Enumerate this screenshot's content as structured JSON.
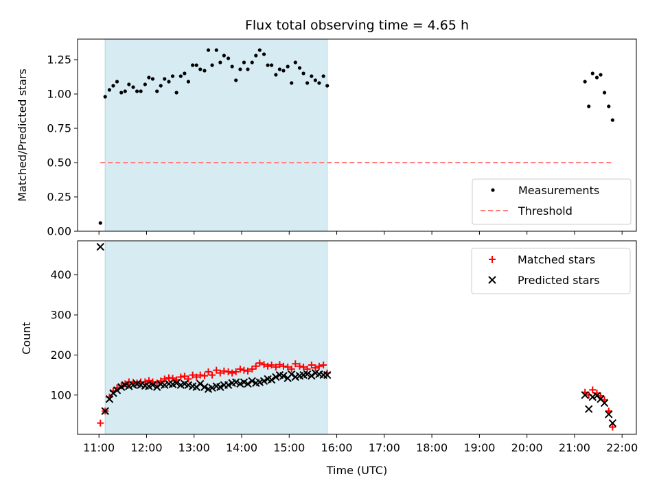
{
  "title": "Flux total observing time = 4.65 h",
  "x_axis": {
    "label": "Time (UTC)",
    "ticks": [
      "11:00",
      "12:00",
      "13:00",
      "14:00",
      "15:00",
      "16:00",
      "17:00",
      "18:00",
      "19:00",
      "20:00",
      "21:00",
      "22:00"
    ],
    "range_hours": [
      10.55,
      22.3
    ]
  },
  "shaded_interval_hours": [
    11.13,
    15.8
  ],
  "shade_color": "#add8e6",
  "chart_data": [
    {
      "type": "scatter",
      "panel": "top",
      "ylabel": "Matched/Predicted stars",
      "ylim": [
        0.0,
        1.4
      ],
      "yticks": [
        "0.00",
        "0.25",
        "0.50",
        "0.75",
        "1.00",
        "1.25"
      ],
      "legend_position": "lower-right",
      "series": [
        {
          "name": "Measurements",
          "color": "#000000",
          "marker": "dot",
          "x": [
            11.03,
            11.13,
            11.22,
            11.3,
            11.38,
            11.47,
            11.55,
            11.63,
            11.72,
            11.8,
            11.88,
            11.97,
            12.05,
            12.13,
            12.22,
            12.3,
            12.38,
            12.47,
            12.55,
            12.63,
            12.72,
            12.8,
            12.88,
            12.97,
            13.05,
            13.13,
            13.22,
            13.3,
            13.38,
            13.47,
            13.55,
            13.63,
            13.72,
            13.8,
            13.88,
            13.97,
            14.05,
            14.13,
            14.22,
            14.3,
            14.38,
            14.47,
            14.55,
            14.63,
            14.72,
            14.8,
            14.88,
            14.97,
            15.05,
            15.13,
            15.22,
            15.3,
            15.38,
            15.47,
            15.55,
            15.63,
            15.72,
            15.8,
            21.22,
            21.3,
            21.38,
            21.47,
            21.55,
            21.63,
            21.72,
            21.8
          ],
          "y": [
            0.06,
            0.98,
            1.03,
            1.06,
            1.09,
            1.01,
            1.02,
            1.07,
            1.05,
            1.02,
            1.02,
            1.07,
            1.12,
            1.11,
            1.02,
            1.06,
            1.11,
            1.09,
            1.13,
            1.01,
            1.13,
            1.15,
            1.09,
            1.21,
            1.21,
            1.18,
            1.17,
            1.32,
            1.21,
            1.32,
            1.23,
            1.28,
            1.26,
            1.2,
            1.1,
            1.18,
            1.23,
            1.18,
            1.23,
            1.28,
            1.32,
            1.29,
            1.21,
            1.21,
            1.14,
            1.18,
            1.17,
            1.2,
            1.08,
            1.23,
            1.19,
            1.15,
            1.08,
            1.13,
            1.1,
            1.08,
            1.13,
            1.06,
            1.09,
            0.91,
            1.15,
            1.12,
            1.14,
            1.01,
            0.91,
            0.81
          ]
        },
        {
          "name": "Threshold",
          "color": "#ff7f7f",
          "style": "dashed",
          "x": [
            11.03,
            21.8
          ],
          "y": [
            0.5,
            0.5
          ]
        }
      ]
    },
    {
      "type": "scatter",
      "panel": "bottom",
      "ylabel": "Count",
      "ylim": [
        2,
        485
      ],
      "yticks": [
        "100",
        "200",
        "300",
        "400"
      ],
      "legend_position": "upper-right",
      "series": [
        {
          "name": "Matched stars",
          "color": "#ff0000",
          "marker": "plus",
          "x": [
            11.03,
            11.13,
            11.22,
            11.3,
            11.38,
            11.47,
            11.55,
            11.63,
            11.72,
            11.8,
            11.88,
            11.97,
            12.05,
            12.13,
            12.22,
            12.3,
            12.38,
            12.47,
            12.55,
            12.63,
            12.72,
            12.8,
            12.88,
            12.97,
            13.05,
            13.13,
            13.22,
            13.3,
            13.38,
            13.47,
            13.55,
            13.63,
            13.72,
            13.8,
            13.88,
            13.97,
            14.05,
            14.13,
            14.22,
            14.3,
            14.38,
            14.47,
            14.55,
            14.63,
            14.72,
            14.8,
            14.88,
            14.97,
            15.05,
            15.13,
            15.22,
            15.3,
            15.38,
            15.47,
            15.55,
            15.63,
            15.72,
            15.8,
            21.22,
            21.3,
            21.38,
            21.47,
            21.55,
            21.63,
            21.72,
            21.8
          ],
          "y": [
            30,
            60,
            95,
            110,
            118,
            123,
            128,
            133,
            132,
            130,
            133,
            133,
            136,
            133,
            130,
            135,
            140,
            143,
            142,
            138,
            145,
            147,
            140,
            150,
            145,
            150,
            148,
            158,
            150,
            162,
            155,
            160,
            158,
            155,
            158,
            165,
            162,
            160,
            165,
            172,
            180,
            176,
            172,
            175,
            170,
            176,
            172,
            170,
            165,
            178,
            172,
            170,
            165,
            175,
            168,
            172,
            175,
            155,
            107,
            100,
            113,
            105,
            98,
            88,
            60,
            20
          ]
        },
        {
          "name": "Predicted stars",
          "color": "#000000",
          "marker": "cross",
          "x": [
            11.03,
            11.13,
            11.22,
            11.3,
            11.38,
            11.47,
            11.55,
            11.63,
            11.72,
            11.8,
            11.88,
            11.97,
            12.05,
            12.13,
            12.22,
            12.3,
            12.38,
            12.47,
            12.55,
            12.63,
            12.72,
            12.8,
            12.88,
            12.97,
            13.05,
            13.13,
            13.22,
            13.3,
            13.38,
            13.47,
            13.55,
            13.63,
            13.72,
            13.8,
            13.88,
            13.97,
            14.05,
            14.13,
            14.22,
            14.3,
            14.38,
            14.47,
            14.55,
            14.63,
            14.72,
            14.8,
            14.88,
            14.97,
            15.05,
            15.13,
            15.22,
            15.3,
            15.38,
            15.47,
            15.55,
            15.63,
            15.72,
            15.8,
            21.22,
            21.3,
            21.38,
            21.47,
            21.55,
            21.63,
            21.72,
            21.8
          ],
          "y": [
            470,
            60,
            90,
            105,
            112,
            120,
            125,
            122,
            125,
            128,
            125,
            123,
            122,
            125,
            120,
            127,
            125,
            128,
            127,
            130,
            125,
            128,
            125,
            122,
            120,
            128,
            120,
            115,
            118,
            122,
            120,
            125,
            125,
            130,
            132,
            128,
            132,
            128,
            135,
            130,
            132,
            135,
            140,
            138,
            145,
            150,
            148,
            142,
            152,
            145,
            148,
            150,
            152,
            148,
            155,
            152,
            150,
            150,
            100,
            65,
            95,
            98,
            90,
            80,
            52,
            30
          ]
        }
      ]
    }
  ]
}
